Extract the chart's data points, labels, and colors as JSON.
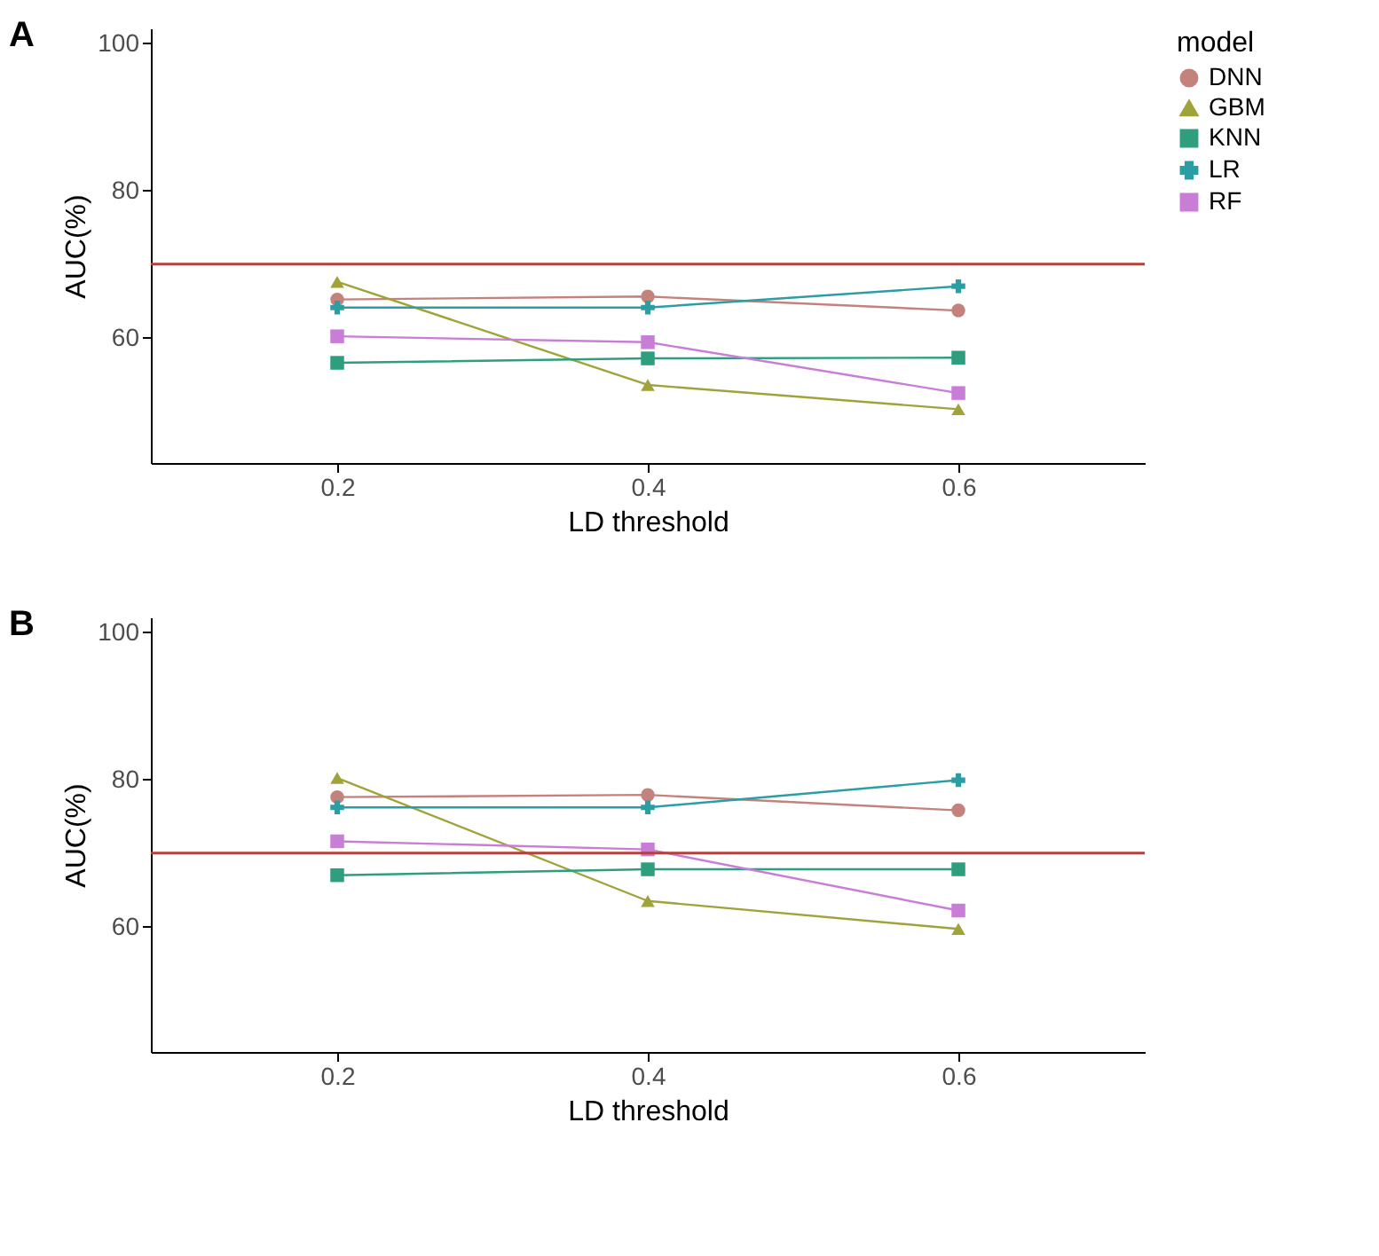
{
  "chart_data": [
    {
      "type": "line",
      "title": "A",
      "xlabel": "LD threshold",
      "ylabel": "AUC(%)",
      "legend_title": "model",
      "legend": "right",
      "x": [
        0.2,
        0.4,
        0.6
      ],
      "xlim": [
        0.08,
        0.72
      ],
      "xticks": [
        0.2,
        0.4,
        0.6
      ],
      "ylim": [
        43,
        102
      ],
      "yticks": [
        60,
        80,
        100
      ],
      "grid": false,
      "series": [
        {
          "name": "DNN",
          "color": "#c4827d",
          "marker": "circle",
          "values": [
            65.2,
            65.6,
            63.7
          ]
        },
        {
          "name": "GBM",
          "color": "#a0a23a",
          "marker": "triangle",
          "values": [
            67.6,
            53.6,
            50.3
          ]
        },
        {
          "name": "KNN",
          "color": "#2e9e7f",
          "marker": "square",
          "values": [
            56.6,
            57.2,
            57.3
          ]
        },
        {
          "name": "LR",
          "color": "#2a9ea3",
          "marker": "cross",
          "values": [
            64.1,
            64.1,
            67.0
          ]
        },
        {
          "name": "RF",
          "color": "#c87dd6",
          "marker": "square",
          "values": [
            60.2,
            59.4,
            52.5
          ]
        }
      ],
      "ref_lines": [
        {
          "axis": "y",
          "value": 70,
          "color": "#b2403c"
        }
      ]
    },
    {
      "type": "line",
      "title": "B",
      "xlabel": "LD threshold",
      "ylabel": "AUC(%)",
      "x": [
        0.2,
        0.4,
        0.6
      ],
      "xlim": [
        0.08,
        0.72
      ],
      "xticks": [
        0.2,
        0.4,
        0.6
      ],
      "ylim": [
        43,
        102
      ],
      "yticks": [
        60,
        80,
        100
      ],
      "grid": false,
      "series": [
        {
          "color": "#c4827d",
          "marker": "circle",
          "values": [
            77.6,
            77.9,
            75.8
          ]
        },
        {
          "color": "#a0a23a",
          "marker": "triangle",
          "values": [
            80.2,
            63.5,
            59.7
          ]
        },
        {
          "color": "#2e9e7f",
          "marker": "square",
          "values": [
            67.0,
            67.8,
            67.8
          ]
        },
        {
          "color": "#2a9ea3",
          "marker": "cross",
          "values": [
            76.2,
            76.2,
            79.9
          ]
        },
        {
          "color": "#c87dd6",
          "marker": "square",
          "values": [
            71.6,
            70.5,
            62.2
          ]
        }
      ],
      "ref_lines": [
        {
          "axis": "y",
          "value": 70,
          "color": "#b2403c"
        }
      ]
    }
  ]
}
